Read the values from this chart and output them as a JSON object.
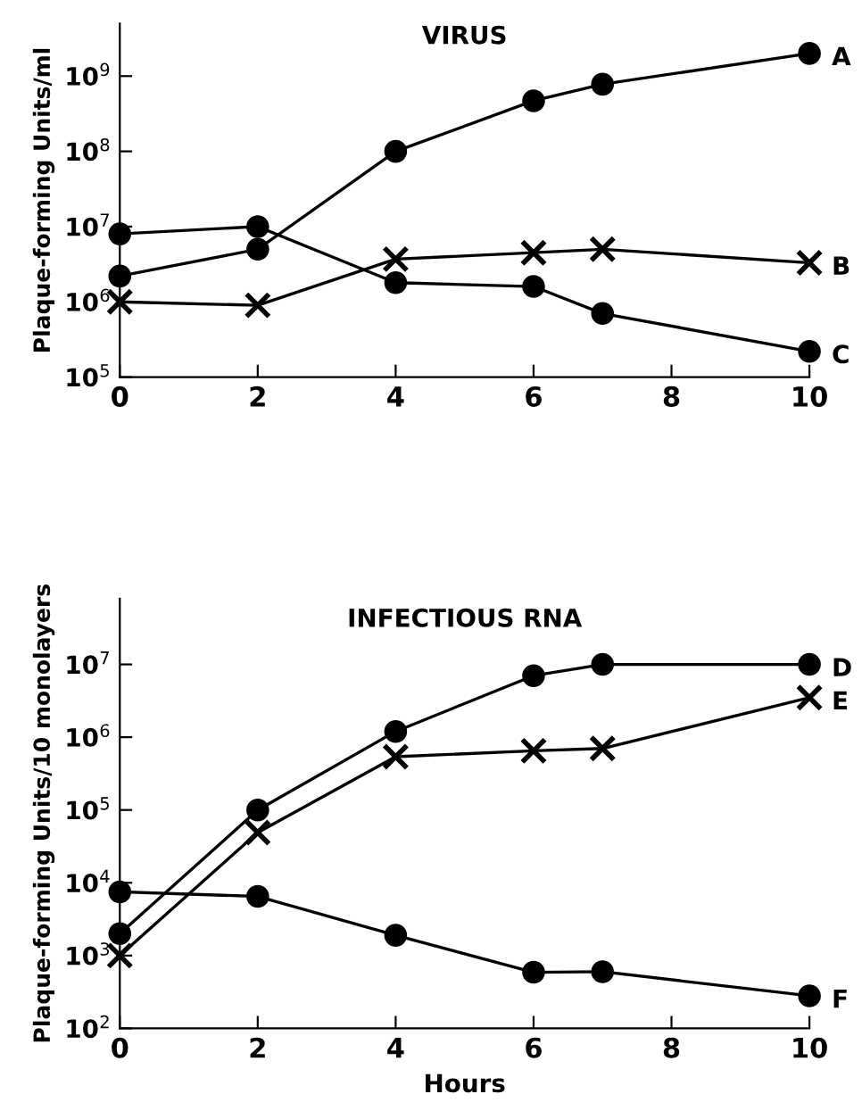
{
  "chart_data": [
    {
      "type": "line",
      "title": "VIRUS",
      "ylabel": "Plaque-forming Units/ml",
      "x": [
        0,
        2,
        4,
        6,
        7,
        10
      ],
      "xlim": [
        0,
        10
      ],
      "xticks": [
        0,
        2,
        4,
        6,
        8,
        10
      ],
      "log": "y",
      "ylim": [
        100000,
        5000000000
      ],
      "yticks": [
        {
          "value": 100000,
          "label": "10$^{5}$"
        },
        {
          "value": 1000000,
          "label": "10$^{6}$"
        },
        {
          "value": 10000000,
          "label": "10$^{7}$"
        },
        {
          "value": 100000000,
          "label": "10$^{8}$"
        },
        {
          "value": 1000000000,
          "label": "10$^{9}$"
        }
      ],
      "grid": false,
      "legend": false,
      "series": [
        {
          "name": "A",
          "color": "#000000",
          "marker": "circle",
          "values": [
            2200000,
            5000000,
            100000000,
            470000000,
            780000000,
            2000000000
          ]
        },
        {
          "name": "B",
          "color": "#000000",
          "marker": "cross",
          "values": [
            1000000,
            900000,
            3700000,
            4500000,
            5000000,
            3300000
          ]
        },
        {
          "name": "C",
          "color": "#000000",
          "marker": "circle",
          "values": [
            8000000,
            10000000,
            1800000,
            1600000,
            700000,
            220000
          ]
        }
      ]
    },
    {
      "type": "line",
      "title": "INFECTIOUS RNA",
      "xlabel": "Hours",
      "ylabel": "Plaque-forming Units/10 monolayers",
      "x": [
        0,
        2,
        4,
        6,
        7,
        10
      ],
      "xlim": [
        0,
        10
      ],
      "xticks": [
        0,
        2,
        4,
        6,
        8,
        10
      ],
      "log": "y",
      "ylim": [
        100,
        80000000
      ],
      "yticks": [
        {
          "value": 100,
          "label": "10$^{2}$"
        },
        {
          "value": 1000,
          "label": "10$^{3}$"
        },
        {
          "value": 10000,
          "label": "10$^{4}$"
        },
        {
          "value": 100000,
          "label": "10$^{5}$"
        },
        {
          "value": 1000000,
          "label": "10$^{6}$"
        },
        {
          "value": 10000000,
          "label": "10$^{7}$"
        }
      ],
      "grid": false,
      "legend": false,
      "series": [
        {
          "name": "D",
          "color": "#000000",
          "marker": "circle",
          "values": [
            2000,
            100000,
            1200000,
            7000000,
            10000000,
            10000000
          ]
        },
        {
          "name": "E",
          "color": "#000000",
          "marker": "cross",
          "values": [
            1000,
            49000,
            540000,
            650000,
            700000,
            3500000
          ]
        },
        {
          "name": "F",
          "color": "#000000",
          "marker": "circle",
          "values": [
            7500,
            6500,
            1900,
            590,
            600,
            280
          ]
        }
      ]
    }
  ]
}
